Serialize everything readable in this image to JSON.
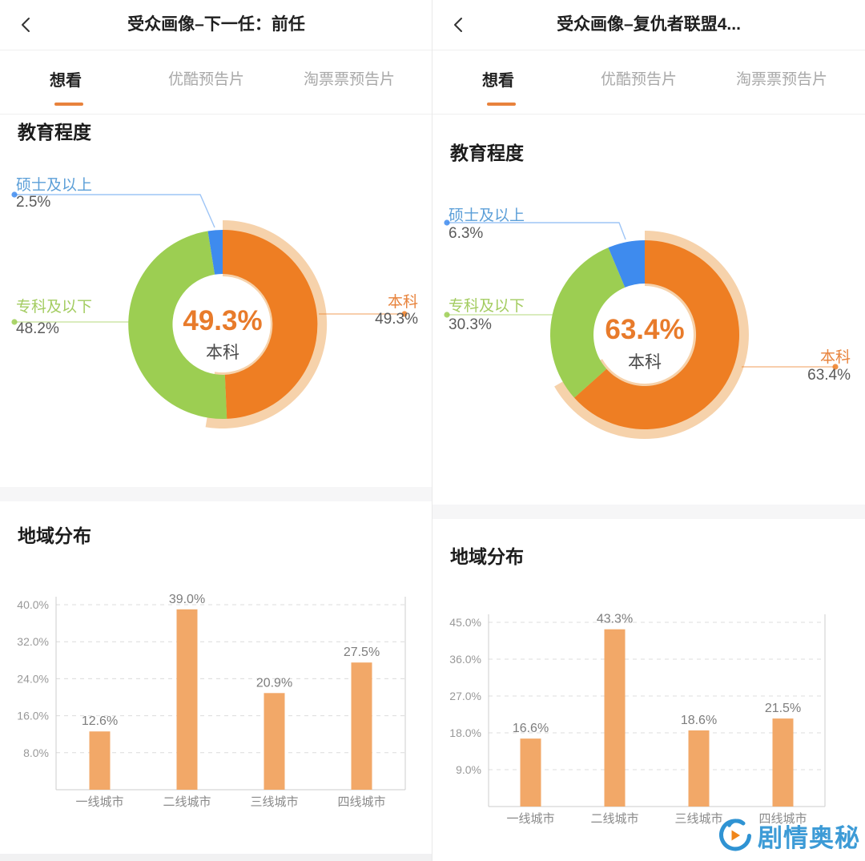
{
  "watermark": {
    "text": "剧情奥秘",
    "color": "#3d9bd6",
    "logo_icon": "play-droplet-icon"
  },
  "colors": {
    "accent_orange": "#e8823c",
    "slice_orange": "#ee7e23",
    "slice_green": "#9cce52",
    "slice_blue": "#3e8bee",
    "slice_halo": "#f6d2ab",
    "bar_fill": "#f2a868",
    "grid_line": "#dcdcdc",
    "axis_line": "#cccccc"
  },
  "panels": [
    {
      "header": {
        "title": "受众画像–下一任：前任",
        "back_icon": "chevron-left"
      },
      "tabs": [
        {
          "label": "想看",
          "active": true
        },
        {
          "label": "优酷预告片",
          "active": false
        },
        {
          "label": "淘票票预告片",
          "active": false
        }
      ]
    },
    {
      "header": {
        "title": "受众画像–复仇者联盟4...",
        "back_icon": "chevron-left"
      },
      "tabs": [
        {
          "label": "想看",
          "active": true
        },
        {
          "label": "优酷预告片",
          "active": false
        },
        {
          "label": "淘票票预告片",
          "active": false
        }
      ]
    }
  ],
  "chart_data": [
    {
      "type": "pie",
      "panel": "left",
      "title": "教育程度",
      "donut": true,
      "center_value": "49.3%",
      "center_label": "本科",
      "legend_position": "callout-labels",
      "slices": [
        {
          "label": "本科",
          "value": 49.3,
          "display": "49.3%",
          "color": "#ee7e23",
          "selected": true
        },
        {
          "label": "专科及以下",
          "value": 48.2,
          "display": "48.2%",
          "color": "#9cce52",
          "selected": false
        },
        {
          "label": "硕士及以上",
          "value": 2.5,
          "display": "2.5%",
          "color": "#3e8bee",
          "selected": false
        }
      ]
    },
    {
      "type": "bar",
      "panel": "left",
      "title": "地域分布",
      "categories": [
        "一线城市",
        "二线城市",
        "三线城市",
        "四线城市"
      ],
      "values": [
        12.6,
        39.0,
        20.9,
        27.5
      ],
      "value_labels": [
        "12.6%",
        "39.0%",
        "20.9%",
        "27.5%"
      ],
      "xlabel": "",
      "ylabel": "",
      "ylim": [
        0,
        40
      ],
      "ytick_values": [
        8,
        16,
        24,
        32,
        40
      ],
      "ytick_labels": [
        "8.0%",
        "16.0%",
        "24.0%",
        "32.0%",
        "40.0%"
      ],
      "grid": true,
      "grid_style": "dashed",
      "bar_color": "#f2a868"
    },
    {
      "type": "pie",
      "panel": "right",
      "title": "教育程度",
      "donut": true,
      "center_value": "63.4%",
      "center_label": "本科",
      "legend_position": "callout-labels",
      "slices": [
        {
          "label": "本科",
          "value": 63.4,
          "display": "63.4%",
          "color": "#ee7e23",
          "selected": true
        },
        {
          "label": "专科及以下",
          "value": 30.3,
          "display": "30.3%",
          "color": "#9cce52",
          "selected": false
        },
        {
          "label": "硕士及以上",
          "value": 6.3,
          "display": "6.3%",
          "color": "#3e8bee",
          "selected": false
        }
      ]
    },
    {
      "type": "bar",
      "panel": "right",
      "title": "地域分布",
      "categories": [
        "一线城市",
        "二线城市",
        "三线城市",
        "四线城市"
      ],
      "values": [
        16.6,
        43.3,
        18.6,
        21.5
      ],
      "value_labels": [
        "16.6%",
        "43.3%",
        "18.6%",
        "21.5%"
      ],
      "xlabel": "",
      "ylabel": "",
      "ylim": [
        0,
        45
      ],
      "ytick_values": [
        9,
        18,
        27,
        36,
        45
      ],
      "ytick_labels": [
        "9.0%",
        "18.0%",
        "27.0%",
        "36.0%",
        "45.0%"
      ],
      "grid": true,
      "grid_style": "dashed",
      "bar_color": "#f2a868"
    }
  ]
}
